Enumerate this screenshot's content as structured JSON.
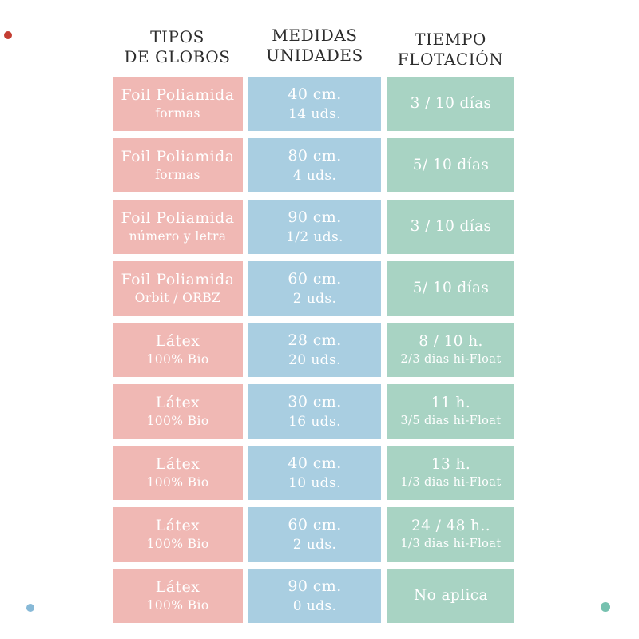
{
  "table": {
    "headers": [
      {
        "line1": "TIPOS",
        "line2": "DE GLOBOS"
      },
      {
        "line1": "MEDIDAS",
        "line2": "UNIDADES"
      },
      {
        "line1": "TIEMPO",
        "line2": "FLOTACIÓN"
      }
    ],
    "rows": [
      {
        "tipo": [
          "Foil Poliamida",
          "formas"
        ],
        "medida": [
          "40 cm.",
          "14 uds."
        ],
        "tiempo": [
          "3 / 10 días"
        ]
      },
      {
        "tipo": [
          "Foil Poliamida",
          "formas"
        ],
        "medida": [
          "80 cm.",
          "4 uds."
        ],
        "tiempo": [
          "5/ 10 días"
        ]
      },
      {
        "tipo": [
          "Foil Poliamida",
          "número y letra"
        ],
        "medida": [
          "90 cm.",
          "1/2 uds."
        ],
        "tiempo": [
          "3 / 10 días"
        ]
      },
      {
        "tipo": [
          "Foil Poliamida",
          "Orbit / ORBZ"
        ],
        "medida": [
          "60 cm.",
          "2 uds."
        ],
        "tiempo": [
          "5/ 10 días"
        ]
      },
      {
        "tipo": [
          "Látex",
          "100% Bio"
        ],
        "medida": [
          "28 cm.",
          "20 uds."
        ],
        "tiempo": [
          "8 / 10 h.",
          "2/3 dias hi-Float"
        ]
      },
      {
        "tipo": [
          "Látex",
          "100% Bio"
        ],
        "medida": [
          "30 cm.",
          "16 uds."
        ],
        "tiempo": [
          "11 h.",
          "3/5 dias hi-Float"
        ]
      },
      {
        "tipo": [
          "Látex",
          "100% Bio"
        ],
        "medida": [
          "40 cm.",
          "10 uds."
        ],
        "tiempo": [
          "13 h.",
          "1/3 dias hi-Float"
        ]
      },
      {
        "tipo": [
          "Látex",
          "100% Bio"
        ],
        "medida": [
          "60 cm.",
          "2 uds."
        ],
        "tiempo": [
          "24 / 48 h..",
          "1/3 dias hi-Float"
        ]
      },
      {
        "tipo": [
          "Látex",
          "100% Bio"
        ],
        "medida": [
          "90 cm.",
          "0 uds."
        ],
        "tiempo": [
          "No aplica"
        ]
      }
    ]
  },
  "colors": {
    "tipo_cell": "#f0b8b4",
    "medida_cell": "#a9cee1",
    "tiempo_cell": "#a8d3c3",
    "header_text": "#2d2d2d",
    "cell_text": "#ffffff",
    "dot_red": "#c43d32",
    "dot_blue": "#87b9d7",
    "dot_teal": "#76c1af"
  },
  "decorations": [
    {
      "name": "red-dot",
      "position": "top-left"
    },
    {
      "name": "blue-dot",
      "position": "bottom-left"
    },
    {
      "name": "teal-dot",
      "position": "bottom-right"
    }
  ],
  "chart_data": {
    "type": "table",
    "title": "",
    "columns": [
      "TIPOS DE GLOBOS",
      "MEDIDAS UNIDADES",
      "TIEMPO FLOTACIÓN"
    ],
    "rows": [
      [
        "Foil Poliamida (formas)",
        "40 cm. / 14 uds.",
        "3 / 10 días"
      ],
      [
        "Foil Poliamida (formas)",
        "80 cm. / 4 uds.",
        "5/ 10 días"
      ],
      [
        "Foil Poliamida (número y letra)",
        "90 cm. / 1/2 uds.",
        "3 / 10 días"
      ],
      [
        "Foil Poliamida (Orbit / ORBZ)",
        "60 cm. / 2 uds.",
        "5/ 10 días"
      ],
      [
        "Látex 100% Bio",
        "28 cm. / 20 uds.",
        "8 / 10 h. (2/3 dias hi-Float)"
      ],
      [
        "Látex 100% Bio",
        "30 cm. / 16 uds.",
        "11 h. (3/5 dias hi-Float)"
      ],
      [
        "Látex 100% Bio",
        "40 cm. / 10 uds.",
        "13 h. (1/3 dias hi-Float)"
      ],
      [
        "Látex 100% Bio",
        "60 cm. / 2 uds.",
        "24 / 48 h.. (1/3 dias hi-Float)"
      ],
      [
        "Látex 100% Bio",
        "90 cm. / 0 uds.",
        "No aplica"
      ]
    ]
  }
}
